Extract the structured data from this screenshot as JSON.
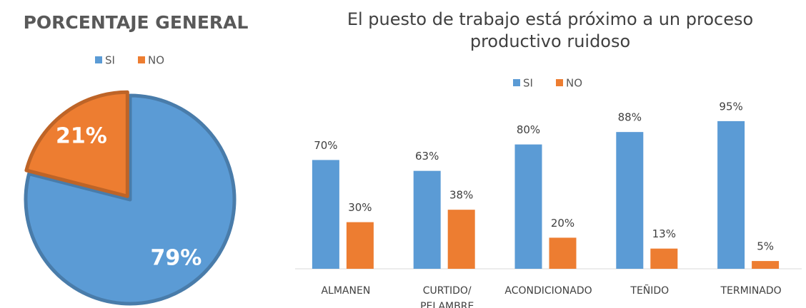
{
  "chart_data": [
    {
      "type": "pie",
      "title": "PORCENTAJE GENERAL",
      "categories": [
        "SI",
        "NO"
      ],
      "values": [
        79,
        21
      ],
      "value_labels": [
        "79%",
        "21%"
      ],
      "colors": [
        "#5b9bd5",
        "#ed7d31"
      ]
    },
    {
      "type": "bar",
      "title": "El puesto de trabajo está próximo a un proceso productivo ruidoso",
      "categories": [
        "ALMANEN",
        "CURTIDO/ PELAMBRE",
        "ACONDICIONADO",
        "TEÑIDO",
        "TERMINADO"
      ],
      "series": [
        {
          "name": "SI",
          "color": "#5b9bd5",
          "values": [
            70,
            63,
            80,
            88,
            95
          ],
          "value_labels": [
            "70%",
            "63%",
            "80%",
            "88%",
            "95%"
          ]
        },
        {
          "name": "NO",
          "color": "#ed7d31",
          "values": [
            30,
            38,
            20,
            13,
            5
          ],
          "value_labels": [
            "30%",
            "38%",
            "20%",
            "13%",
            "5%"
          ]
        }
      ]
    }
  ]
}
